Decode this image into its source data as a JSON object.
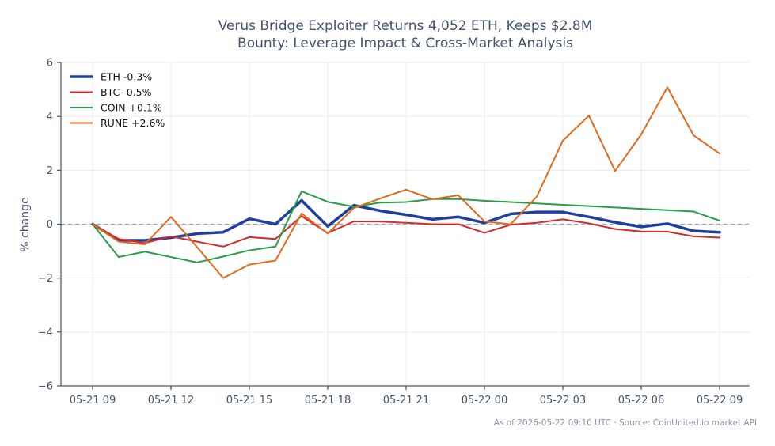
{
  "chart_data": {
    "type": "line",
    "title_lines": [
      "Verus Bridge Exploiter Returns 4,052 ETH, Keeps $2.8M",
      "Bounty: Leverage Impact & Cross-Market Analysis"
    ],
    "xlabel": "",
    "ylabel": "% change",
    "ylim": [
      -6,
      6
    ],
    "yticks": [
      -6,
      -4,
      -2,
      0,
      2,
      4,
      6
    ],
    "ytick_labels": [
      "−6",
      "−4",
      "−2",
      "0",
      "2",
      "4",
      "6"
    ],
    "xlim": [
      0,
      24.3
    ],
    "xticks": [
      0,
      3,
      6,
      9,
      12,
      15,
      18,
      21,
      24
    ],
    "xtick_labels": [
      "05-21 09",
      "05-21 12",
      "05-21 15",
      "05-21 18",
      "05-21 21",
      "05-22 00",
      "05-22 03",
      "05-22 06",
      "05-22 09"
    ],
    "grid": true,
    "reference_line": 0,
    "legend_position": "top-left",
    "x": [
      0,
      1,
      2,
      3,
      4,
      5,
      6,
      7,
      8,
      9,
      10,
      11,
      12,
      13,
      14,
      15,
      16,
      17,
      18,
      19,
      20,
      21,
      22,
      23,
      24
    ],
    "series": [
      {
        "name": "ETH -0.3%",
        "color": "#1f3f9f",
        "width": 3.5,
        "values": [
          0,
          -0.6,
          -0.6,
          -0.5,
          -0.35,
          -0.3,
          0.2,
          0,
          0.88,
          -0.08,
          0.7,
          0.5,
          0.35,
          0.18,
          0.27,
          0.05,
          0.38,
          0.45,
          0.45,
          0.27,
          0.07,
          -0.1,
          0.02,
          -0.25,
          -0.3
        ]
      },
      {
        "name": "BTC -0.5%",
        "color": "#d62a2a",
        "width": 2,
        "values": [
          0,
          -0.55,
          -0.7,
          -0.45,
          -0.65,
          -0.83,
          -0.48,
          -0.55,
          0.3,
          -0.33,
          0.1,
          0.1,
          0.05,
          0,
          0,
          -0.32,
          -0.02,
          0.05,
          0.18,
          0.03,
          -0.18,
          -0.27,
          -0.28,
          -0.45,
          -0.5
        ]
      },
      {
        "name": "COIN +0.1%",
        "color": "#2a9d4a",
        "width": 2,
        "values": [
          0,
          -1.22,
          -1.02,
          -1.22,
          -1.42,
          -1.2,
          -0.97,
          -0.83,
          1.22,
          0.83,
          0.65,
          0.8,
          0.82,
          0.93,
          0.93,
          0.87,
          0.82,
          0.77,
          0.72,
          0.67,
          0.62,
          0.57,
          0.52,
          0.47,
          0.13
        ]
      },
      {
        "name": "RUNE +2.6%",
        "color": "#e06a1c",
        "width": 2,
        "values": [
          0,
          -0.65,
          -0.75,
          0.27,
          -0.85,
          -2.0,
          -1.5,
          -1.35,
          0.4,
          -0.35,
          0.6,
          0.95,
          1.28,
          0.93,
          1.07,
          0.1,
          0,
          1.02,
          3.1,
          4.03,
          1.97,
          3.33,
          5.08,
          3.3,
          2.62
        ]
      }
    ]
  },
  "footer": "As of 2026-05-22 09:10 UTC · Source: CoinUnited.io market API"
}
